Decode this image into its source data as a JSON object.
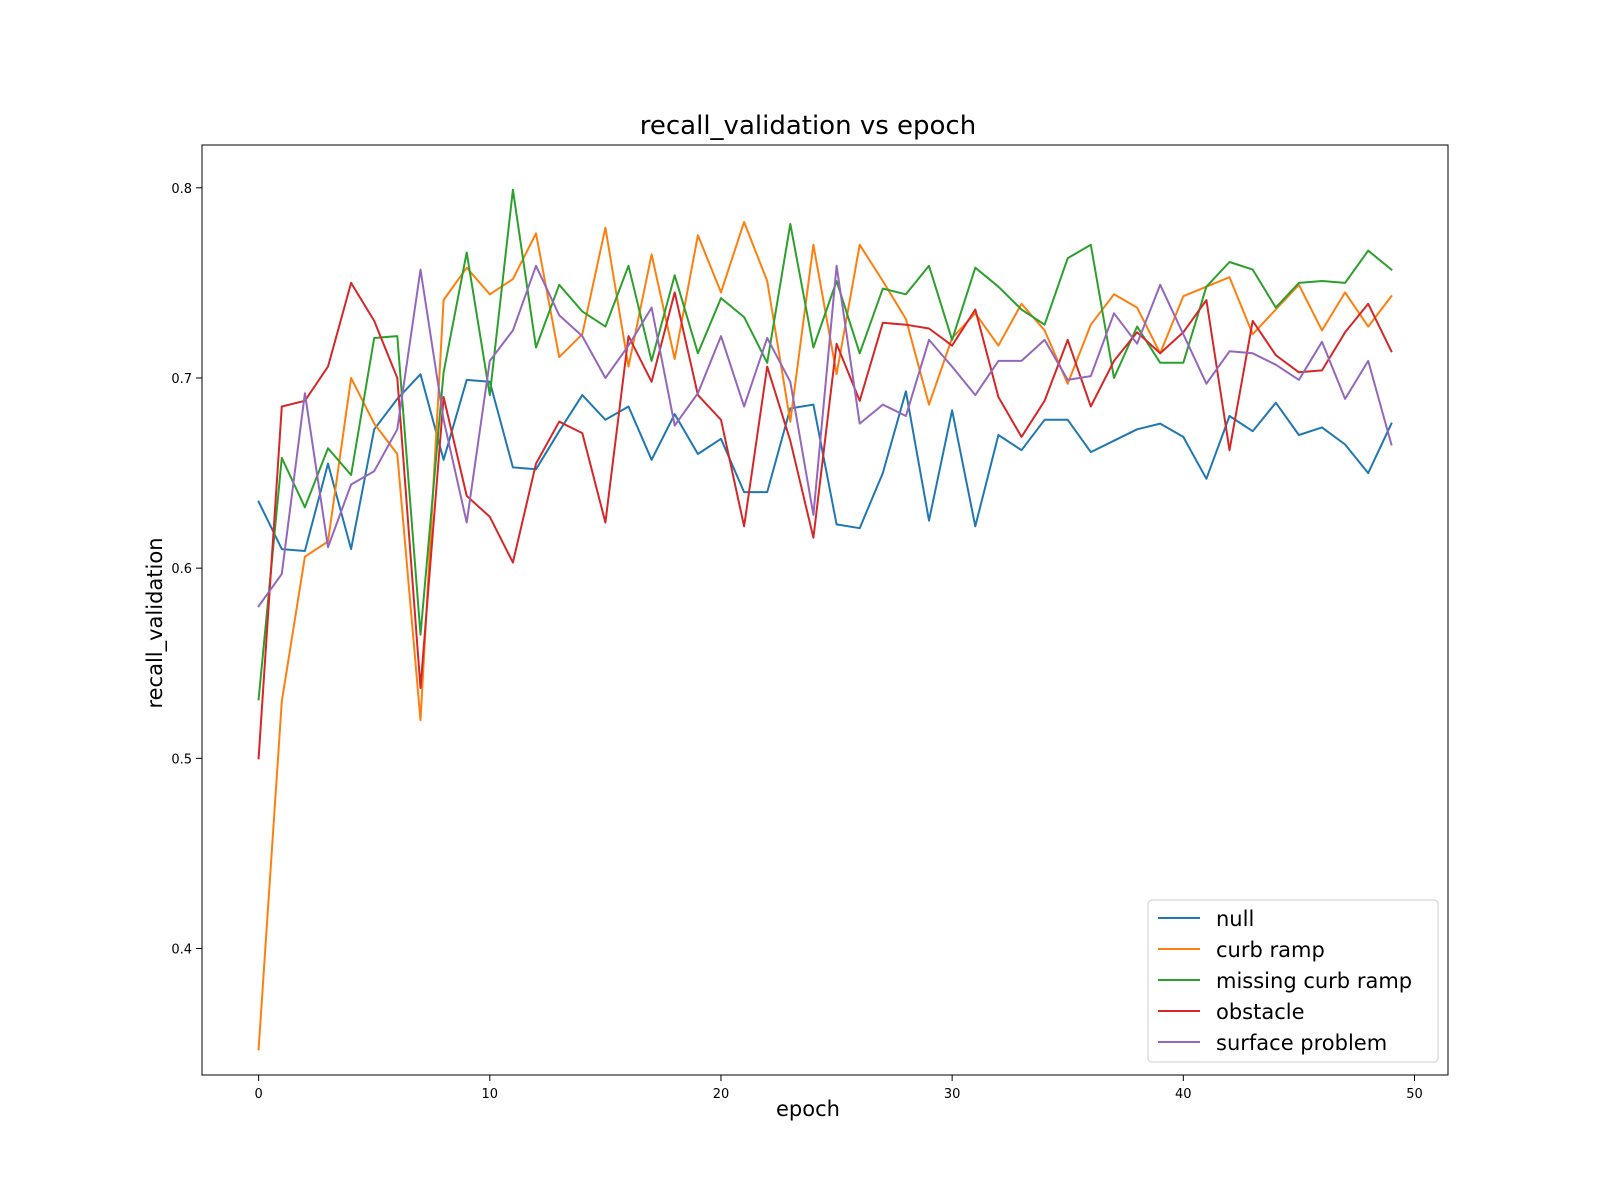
{
  "chart_data": {
    "type": "line",
    "title": "recall_validation vs epoch",
    "xlabel": "epoch",
    "ylabel": "recall_validation",
    "xlim": [
      -2.45,
      51.45
    ],
    "ylim": [
      0.3335,
      0.8225
    ],
    "xticks": [
      0,
      10,
      20,
      30,
      40,
      50
    ],
    "yticks": [
      0.4,
      0.5,
      0.6,
      0.7,
      0.8
    ],
    "xtick_labels": [
      "0",
      "10",
      "20",
      "30",
      "40",
      "50"
    ],
    "ytick_labels": [
      "0.4",
      "0.5",
      "0.6",
      "0.7",
      "0.8"
    ],
    "grid": false,
    "legend_position": "lower right",
    "x": [
      0,
      1,
      2,
      3,
      4,
      5,
      6,
      7,
      8,
      9,
      10,
      11,
      12,
      13,
      14,
      15,
      16,
      17,
      18,
      19,
      20,
      21,
      22,
      23,
      24,
      25,
      26,
      27,
      28,
      29,
      30,
      31,
      32,
      33,
      34,
      35,
      36,
      37,
      38,
      39,
      40,
      41,
      42,
      43,
      44,
      45,
      46,
      47,
      48,
      49
    ],
    "series": [
      {
        "name": "null",
        "color": "#1f77b4",
        "values": [
          0.635,
          0.61,
          0.609,
          0.655,
          0.61,
          0.673,
          0.689,
          0.702,
          0.657,
          0.699,
          0.698,
          0.653,
          0.652,
          0.672,
          0.691,
          0.678,
          0.685,
          0.657,
          0.681,
          0.66,
          0.668,
          0.64,
          0.64,
          0.684,
          0.686,
          0.623,
          0.621,
          0.65,
          0.693,
          0.625,
          0.683,
          0.622,
          0.67,
          0.662,
          0.678,
          0.678,
          0.661,
          0.667,
          0.673,
          0.676,
          0.669,
          0.647,
          0.68,
          0.672,
          0.687,
          0.67,
          0.674,
          0.665,
          0.65,
          0.676
        ]
      },
      {
        "name": "curb ramp",
        "color": "#ff7f0e",
        "values": [
          0.347,
          0.53,
          0.606,
          0.614,
          0.7,
          0.676,
          0.66,
          0.52,
          0.741,
          0.758,
          0.744,
          0.752,
          0.776,
          0.711,
          0.723,
          0.779,
          0.706,
          0.765,
          0.71,
          0.775,
          0.745,
          0.782,
          0.751,
          0.677,
          0.77,
          0.702,
          0.77,
          0.751,
          0.731,
          0.686,
          0.721,
          0.734,
          0.717,
          0.739,
          0.725,
          0.697,
          0.728,
          0.744,
          0.737,
          0.713,
          0.743,
          0.748,
          0.753,
          0.723,
          0.736,
          0.749,
          0.725,
          0.745,
          0.727,
          0.743
        ]
      },
      {
        "name": "missing curb ramp",
        "color": "#2ca02c",
        "values": [
          0.531,
          0.658,
          0.632,
          0.663,
          0.649,
          0.721,
          0.722,
          0.565,
          0.703,
          0.766,
          0.691,
          0.799,
          0.716,
          0.749,
          0.735,
          0.727,
          0.759,
          0.709,
          0.754,
          0.713,
          0.742,
          0.732,
          0.708,
          0.781,
          0.716,
          0.751,
          0.713,
          0.747,
          0.744,
          0.759,
          0.72,
          0.758,
          0.748,
          0.736,
          0.728,
          0.763,
          0.77,
          0.7,
          0.727,
          0.708,
          0.708,
          0.748,
          0.761,
          0.757,
          0.737,
          0.75,
          0.751,
          0.75,
          0.767,
          0.757
        ]
      },
      {
        "name": "obstacle",
        "color": "#d62728",
        "values": [
          0.5,
          0.685,
          0.688,
          0.706,
          0.75,
          0.73,
          0.7,
          0.537,
          0.69,
          0.638,
          0.627,
          0.603,
          0.655,
          0.677,
          0.671,
          0.624,
          0.722,
          0.698,
          0.745,
          0.691,
          0.678,
          0.622,
          0.706,
          0.667,
          0.616,
          0.718,
          0.688,
          0.729,
          0.728,
          0.726,
          0.717,
          0.736,
          0.69,
          0.669,
          0.688,
          0.72,
          0.685,
          0.709,
          0.724,
          0.713,
          0.724,
          0.741,
          0.662,
          0.73,
          0.712,
          0.703,
          0.704,
          0.724,
          0.739,
          0.714
        ]
      },
      {
        "name": "surface problem",
        "color": "#9467bd",
        "values": [
          0.58,
          0.597,
          0.692,
          0.611,
          0.644,
          0.651,
          0.673,
          0.757,
          0.678,
          0.624,
          0.709,
          0.725,
          0.759,
          0.733,
          0.722,
          0.7,
          0.717,
          0.737,
          0.675,
          0.692,
          0.722,
          0.685,
          0.721,
          0.698,
          0.628,
          0.759,
          0.676,
          0.686,
          0.68,
          0.72,
          0.706,
          0.691,
          0.709,
          0.709,
          0.72,
          0.699,
          0.701,
          0.734,
          0.718,
          0.749,
          0.723,
          0.697,
          0.714,
          0.713,
          0.707,
          0.699,
          0.719,
          0.689,
          0.709,
          0.665
        ]
      }
    ]
  }
}
